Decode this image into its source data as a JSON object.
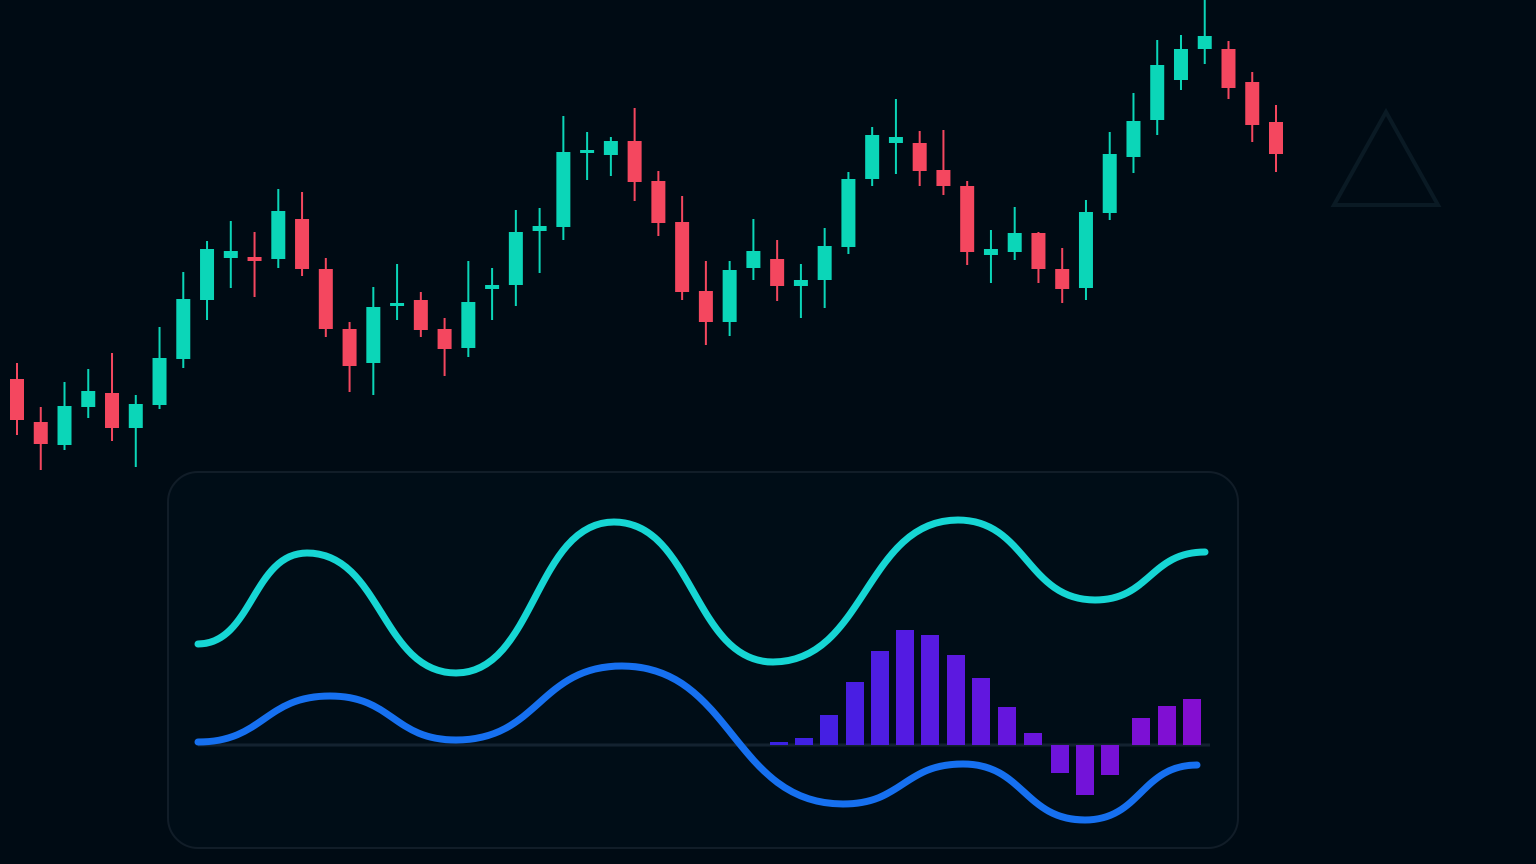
{
  "chart_data": [
    {
      "type": "candlestick",
      "up_color": "#0bd6b8",
      "down_color": "#f4475f",
      "ylim": [
        0,
        864
      ],
      "open": [
        485,
        442,
        419,
        457,
        471,
        436,
        459,
        505,
        564,
        606,
        607,
        605,
        645,
        595,
        535,
        501,
        559,
        564,
        535,
        516,
        575,
        579,
        633,
        637,
        711,
        709,
        723,
        683,
        642,
        573,
        542,
        596,
        605,
        578,
        584,
        617,
        685,
        721,
        721,
        694,
        678,
        609,
        612,
        631,
        595,
        576,
        651,
        707,
        744,
        784,
        815,
        815,
        782,
        742
      ],
      "high": [
        501,
        457,
        482,
        495,
        511,
        469,
        537,
        592,
        623,
        643,
        632,
        675,
        672,
        606,
        542,
        577,
        600,
        572,
        546,
        603,
        596,
        654,
        656,
        748,
        732,
        727,
        756,
        693,
        668,
        603,
        603,
        645,
        624,
        600,
        636,
        692,
        737,
        765,
        733,
        734,
        683,
        634,
        657,
        632,
        616,
        664,
        732,
        771,
        824,
        829,
        864,
        823,
        792,
        759
      ],
      "low": [
        429,
        394,
        414,
        446,
        423,
        397,
        455,
        496,
        544,
        576,
        567,
        596,
        588,
        527,
        472,
        469,
        544,
        527,
        488,
        507,
        544,
        558,
        591,
        624,
        684,
        688,
        663,
        628,
        564,
        519,
        528,
        584,
        563,
        546,
        556,
        610,
        678,
        690,
        678,
        669,
        599,
        581,
        604,
        581,
        561,
        564,
        644,
        691,
        729,
        774,
        800,
        765,
        722,
        692
      ],
      "close": [
        444,
        420,
        458,
        473,
        436,
        460,
        506,
        565,
        615,
        613,
        603,
        653,
        595,
        535,
        498,
        557,
        561,
        534,
        515,
        562,
        579,
        632,
        638,
        712,
        714,
        723,
        682,
        641,
        572,
        542,
        594,
        613,
        578,
        584,
        618,
        685,
        729,
        727,
        693,
        678,
        612,
        615,
        631,
        595,
        575,
        652,
        710,
        743,
        799,
        815,
        828,
        776,
        739,
        710
      ]
    },
    {
      "type": "line",
      "xlim": [
        0,
        1536
      ],
      "ylim": [
        -119,
        745
      ],
      "yticks": [
        0
      ],
      "grid": true,
      "series": [
        {
          "name": null,
          "type": "line",
          "color": "#16d6d4",
          "x": [
            198,
            307,
            456,
            614,
            773,
            958,
            1095,
            1205
          ],
          "values": [
            101,
            192,
            72,
            223,
            83,
            225,
            145,
            193
          ]
        },
        {
          "name": null,
          "type": "line",
          "color": "#1670f0",
          "x": [
            198,
            330,
            456,
            622,
            843,
            963,
            1085,
            1197
          ],
          "values": [
            3,
            49,
            5,
            79,
            -59,
            -19,
            -75,
            -20
          ]
        },
        {
          "name": null,
          "type": "bar",
          "color": "#3b22e4",
          "x": [
            779,
            804,
            829,
            855,
            880,
            905,
            930,
            956,
            981,
            1007,
            1033,
            1060,
            1085,
            1110,
            1141,
            1167,
            1192
          ],
          "values": [
            3,
            7,
            30,
            63,
            94,
            115,
            110,
            90,
            67,
            38,
            12,
            -28,
            -50,
            -30,
            27,
            39,
            46
          ]
        }
      ]
    }
  ]
}
